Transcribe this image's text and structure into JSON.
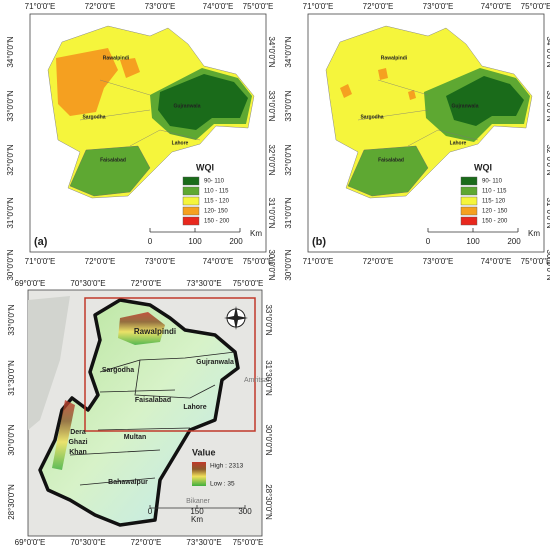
{
  "panels": [
    {
      "label": "(a)",
      "lon_labels": [
        "71°0'0\"E",
        "72°0'0\"E",
        "73°0'0\"E",
        "74°0'0\"E",
        "75°0'0\"E"
      ],
      "lat_labels": [
        "34°0'0\"N",
        "33°0'0\"N",
        "32°0'0\"N",
        "31°0'0\"N",
        "30°0'0\"N"
      ],
      "cities": [
        "Rawalpindi",
        "Sargodha",
        "Gujranwala",
        "Lahore",
        "Faisalabad"
      ],
      "legend": {
        "title": "WQI",
        "classes": [
          {
            "label": "90- 110",
            "color": "#1a6b1a"
          },
          {
            "label": "110 - 115",
            "color": "#5ea832"
          },
          {
            "label": "115 - 120",
            "color": "#f5f53c"
          },
          {
            "label": "120- 150",
            "color": "#f5a020"
          },
          {
            "label": "150 - 200",
            "color": "#e8281e"
          }
        ]
      },
      "scale": [
        "0",
        "100",
        "200",
        "Km"
      ]
    },
    {
      "label": "(b)",
      "lon_labels": [
        "71°0'0\"E",
        "72°0'0\"E",
        "73°0'0\"E",
        "74°0'0\"E",
        "75°0'0\"E"
      ],
      "lat_labels": [
        "34°0'0\"N",
        "33°0'0\"N",
        "32°0'0\"N",
        "31°0'0\"N",
        "30°0'0\"N"
      ],
      "cities": [
        "Rawalpindi",
        "Sargodha",
        "Gujranwala",
        "Lahore",
        "Faisalabad"
      ],
      "legend": {
        "title": "WQI",
        "classes": [
          {
            "label": "90- 110",
            "color": "#1a6b1a"
          },
          {
            "label": "110 - 115",
            "color": "#5ea832"
          },
          {
            "label": "115- 120",
            "color": "#f5f53c"
          },
          {
            "label": "120 - 150",
            "color": "#f5a020"
          },
          {
            "label": "150 - 200",
            "color": "#e8281e"
          }
        ]
      },
      "scale": [
        "0",
        "100",
        "200",
        "Km"
      ]
    }
  ],
  "overview": {
    "lon_labels": [
      "69°0'0\"E",
      "70°30'0\"E",
      "72°0'0\"E",
      "73°30'0\"E",
      "75°0'0\"E"
    ],
    "lat_labels": [
      "33°0'0\"N",
      "31°30'0\"N",
      "30°0'0\"N",
      "28°30'0\"N"
    ],
    "cities": [
      "Rawalpindi",
      "Gujranwala",
      "Sargodha",
      "Faisalabad",
      "Lahore",
      "Multan",
      "Dera",
      "Ghazi",
      "Khan",
      "Bahawalpur"
    ],
    "legend": {
      "title": "Value",
      "high": "High : 2313",
      "low": "Low : 35"
    },
    "scale": [
      "0",
      "150",
      "300",
      "Km"
    ],
    "basemap_labels": [
      "Amritsar",
      "Bikaner"
    ]
  }
}
